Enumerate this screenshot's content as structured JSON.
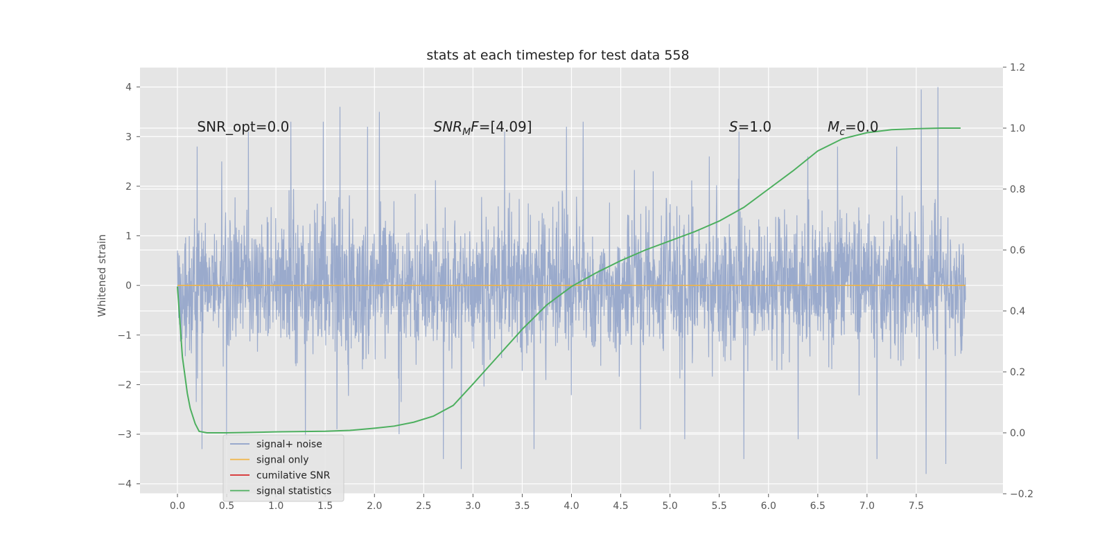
{
  "chart_data": {
    "type": "line",
    "title": "stats at each timestep for test data 558",
    "xlabel": "",
    "ylabel": "Whitened strain",
    "y2label": "",
    "xlim": [
      -0.38,
      8.38
    ],
    "ylim": [
      -4.2,
      4.4
    ],
    "y2lim": [
      -0.2,
      1.2
    ],
    "x_ticks": [
      0.0,
      0.5,
      1.0,
      1.5,
      2.0,
      2.5,
      3.0,
      3.5,
      4.0,
      4.5,
      5.0,
      5.5,
      6.0,
      6.5,
      7.0,
      7.5
    ],
    "x_tick_labels": [
      "0.0",
      "0.5",
      "1.0",
      "1.5",
      "2.0",
      "2.5",
      "3.0",
      "3.5",
      "4.0",
      "4.5",
      "5.0",
      "5.5",
      "6.0",
      "6.5",
      "7.0",
      "7.5"
    ],
    "y_ticks": [
      -4,
      -3,
      -2,
      -1,
      0,
      1,
      2,
      3,
      4
    ],
    "y_tick_labels": [
      "−4",
      "−3",
      "−2",
      "−1",
      "0",
      "1",
      "2",
      "3",
      "4"
    ],
    "y2_ticks": [
      -0.2,
      0.0,
      0.2,
      0.4,
      0.6,
      0.8,
      1.0,
      1.2
    ],
    "y2_tick_labels": [
      "−0.2",
      "0.0",
      "0.2",
      "0.4",
      "0.6",
      "0.8",
      "1.0",
      "1.2"
    ],
    "grid": true,
    "legend_position": "lower-left",
    "style": {
      "background": "#e5e5e5",
      "grid_color": "#ffffff"
    },
    "annotations": [
      {
        "id": "snr-opt",
        "x": 0.2,
        "y": 3.2,
        "segments": [
          {
            "t": "SNR_opt=0.0"
          }
        ]
      },
      {
        "id": "snr-mf",
        "x": 2.6,
        "y": 3.2,
        "segments": [
          {
            "t": "SNR",
            "i": true
          },
          {
            "t": "M",
            "i": true,
            "sub": true
          },
          {
            "t": "F",
            "i": true
          },
          {
            "t": "=[4.09]"
          }
        ]
      },
      {
        "id": "s",
        "x": 5.6,
        "y": 3.2,
        "segments": [
          {
            "t": "S",
            "i": true
          },
          {
            "t": "=1.0"
          }
        ]
      },
      {
        "id": "mc",
        "x": 6.6,
        "y": 3.2,
        "segments": [
          {
            "t": "M",
            "i": true
          },
          {
            "t": "c",
            "i": true,
            "sub": true
          },
          {
            "t": "=0.0"
          }
        ]
      }
    ],
    "series": [
      {
        "name": "signal+ noise",
        "color": "#8da0c8",
        "axis": "left",
        "kind": "noise",
        "x_range": [
          0.0,
          8.0
        ],
        "band_sd": 0.72,
        "approx_extremes": {
          "max": 4.0,
          "min": -3.8
        },
        "peaks": [
          [
            0.2,
            2.8
          ],
          [
            0.45,
            2.5
          ],
          [
            0.72,
            3.1
          ],
          [
            1.15,
            3.3
          ],
          [
            1.48,
            3.3
          ],
          [
            1.65,
            3.6
          ],
          [
            1.93,
            3.2
          ],
          [
            2.05,
            3.5
          ],
          [
            3.32,
            3.1
          ],
          [
            3.95,
            3.2
          ],
          [
            4.12,
            3.3
          ],
          [
            5.4,
            2.6
          ],
          [
            5.7,
            3.1
          ],
          [
            6.4,
            2.6
          ],
          [
            6.7,
            2.8
          ],
          [
            7.3,
            2.8
          ],
          [
            7.55,
            3.95
          ],
          [
            7.72,
            4.0
          ],
          [
            7.8,
            3.4
          ]
        ],
        "troughs": [
          [
            0.25,
            -3.3
          ],
          [
            0.5,
            -3.1
          ],
          [
            1.3,
            -3.1
          ],
          [
            1.62,
            -2.9
          ],
          [
            2.25,
            -3.0
          ],
          [
            2.7,
            -3.5
          ],
          [
            2.88,
            -3.7
          ],
          [
            3.62,
            -3.3
          ],
          [
            4.7,
            -2.9
          ],
          [
            5.15,
            -3.1
          ],
          [
            5.75,
            -3.5
          ],
          [
            6.3,
            -3.1
          ],
          [
            7.1,
            -3.5
          ],
          [
            7.6,
            -3.8
          ],
          [
            7.8,
            -3.6
          ]
        ]
      },
      {
        "name": "signal only",
        "color": "#f0b445",
        "axis": "left",
        "x": [
          0.0,
          8.0
        ],
        "y": [
          0.0,
          0.0
        ]
      },
      {
        "name": "cumilative SNR",
        "color": "#d62728",
        "axis": "left",
        "x": [],
        "y": []
      },
      {
        "name": "signal statistics",
        "color": "#4caf5e",
        "axis": "right",
        "x": [
          0.0,
          0.05,
          0.1,
          0.13,
          0.18,
          0.22,
          0.3,
          0.5,
          1.0,
          1.5,
          1.75,
          2.0,
          2.2,
          2.4,
          2.6,
          2.8,
          3.0,
          3.25,
          3.5,
          3.75,
          4.0,
          4.25,
          4.5,
          4.75,
          5.0,
          5.25,
          5.5,
          5.75,
          6.0,
          6.25,
          6.5,
          6.75,
          7.0,
          7.25,
          7.5,
          7.75,
          7.95
        ],
        "y": [
          0.48,
          0.25,
          0.13,
          0.08,
          0.03,
          0.005,
          0.0,
          0.0,
          0.003,
          0.005,
          0.008,
          0.015,
          0.022,
          0.035,
          0.055,
          0.09,
          0.16,
          0.25,
          0.34,
          0.42,
          0.48,
          0.525,
          0.565,
          0.6,
          0.63,
          0.66,
          0.695,
          0.74,
          0.8,
          0.86,
          0.925,
          0.965,
          0.985,
          0.995,
          0.998,
          1.0,
          1.0
        ]
      }
    ]
  }
}
